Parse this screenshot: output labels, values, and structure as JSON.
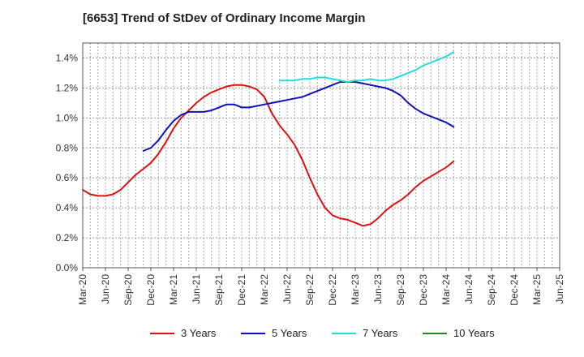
{
  "chart_data": {
    "type": "line",
    "title": "[6653]  Trend of StDev of Ordinary Income Margin",
    "xlabel": "",
    "ylabel": "",
    "x_ticks": [
      "Mar-20",
      "Jun-20",
      "Sep-20",
      "Dec-20",
      "Mar-21",
      "Jun-21",
      "Sep-21",
      "Dec-21",
      "Mar-22",
      "Jun-22",
      "Sep-22",
      "Dec-22",
      "Mar-23",
      "Jun-23",
      "Sep-23",
      "Dec-23",
      "Mar-24",
      "Jun-24",
      "Sep-24",
      "Dec-24",
      "Mar-25",
      "Jun-25"
    ],
    "y_ticks": [
      "0.0%",
      "0.2%",
      "0.4%",
      "0.6%",
      "0.8%",
      "1.0%",
      "1.2%",
      "1.4%"
    ],
    "ylim": [
      0,
      1.5
    ],
    "grid": true,
    "legend_position": "bottom",
    "series": [
      {
        "name": "3 Years",
        "color": "#dd1111",
        "values": [
          0.52,
          0.49,
          0.48,
          0.48,
          0.49,
          0.52,
          0.57,
          0.62,
          0.66,
          0.7,
          0.76,
          0.84,
          0.93,
          1.0,
          1.05,
          1.1,
          1.14,
          1.17,
          1.19,
          1.21,
          1.22,
          1.22,
          1.21,
          1.19,
          1.14,
          1.03,
          0.95,
          0.89,
          0.82,
          0.72,
          0.6,
          0.49,
          0.4,
          0.35,
          0.33,
          0.32,
          0.3,
          0.28,
          0.29,
          0.33,
          0.38,
          0.42,
          0.45,
          0.49,
          0.54,
          0.58,
          0.61,
          0.64,
          0.67,
          0.71
        ]
      },
      {
        "name": "5 Years",
        "color": "#1111bb",
        "values": [
          null,
          null,
          null,
          null,
          null,
          null,
          null,
          null,
          0.78,
          0.8,
          0.85,
          0.92,
          0.98,
          1.02,
          1.04,
          1.04,
          1.04,
          1.05,
          1.07,
          1.09,
          1.09,
          1.07,
          1.07,
          1.08,
          1.09,
          1.1,
          1.11,
          1.12,
          1.13,
          1.14,
          1.16,
          1.18,
          1.2,
          1.22,
          1.24,
          1.24,
          1.24,
          1.23,
          1.22,
          1.21,
          1.2,
          1.18,
          1.15,
          1.1,
          1.06,
          1.03,
          1.01,
          0.99,
          0.97,
          0.94
        ]
      },
      {
        "name": "7 Years",
        "color": "#22dddd",
        "values": [
          null,
          null,
          null,
          null,
          null,
          null,
          null,
          null,
          null,
          null,
          null,
          null,
          null,
          null,
          null,
          null,
          null,
          null,
          null,
          null,
          null,
          null,
          null,
          null,
          null,
          null,
          1.25,
          1.25,
          1.25,
          1.26,
          1.26,
          1.27,
          1.27,
          1.26,
          1.25,
          1.24,
          1.25,
          1.25,
          1.26,
          1.25,
          1.25,
          1.26,
          1.28,
          1.3,
          1.32,
          1.35,
          1.37,
          1.39,
          1.41,
          1.44
        ]
      },
      {
        "name": "10 Years",
        "color": "#228822",
        "values": []
      }
    ]
  }
}
